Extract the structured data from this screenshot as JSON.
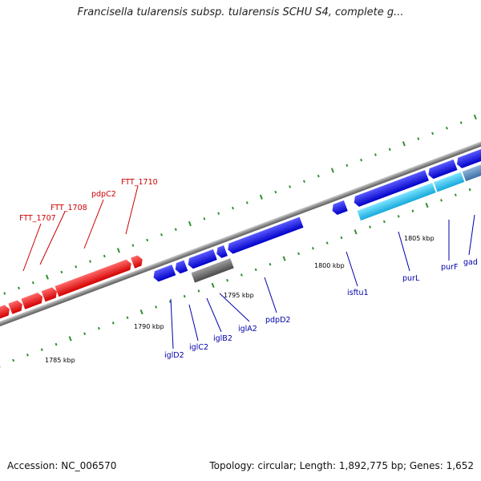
{
  "title": "Francisella tularensis subsp. tularensis SCHU S4, complete g...",
  "footer": {
    "accession": "Accession: NC_006570",
    "summary": "Topology: circular; Length: 1,892,775 bp; Genes: 1,652"
  },
  "colors": {
    "forward_genes": "#ff0000",
    "reverse_genes": "#1a1aff",
    "highlight_gene": "#33c8f0",
    "other_gene": "#777777",
    "backbone": "#8c8c8c",
    "ticks": "#2f8f2f",
    "red_label": "#cc0000",
    "blue_label": "#0000aa"
  },
  "kbp_marks": [
    "1785 kbp",
    "1790 kbp",
    "1795 kbp",
    "1800 kbp",
    "1805 kbp"
  ],
  "red_gene_labels": [
    "FTT_1707",
    "FTT_1708",
    "pdpC2",
    "FTT_1710"
  ],
  "blue_gene_labels": [
    "iglD2",
    "iglC2",
    "iglB2",
    "iglA2",
    "pdpD2",
    "isftu1",
    "purL",
    "purF",
    "gad"
  ]
}
